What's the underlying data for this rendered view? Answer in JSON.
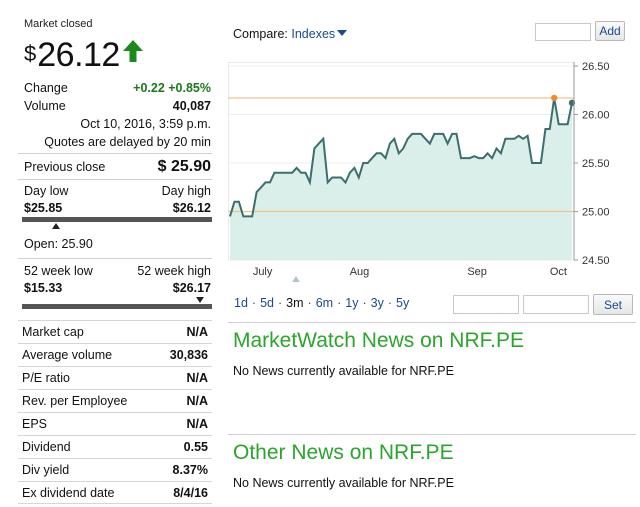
{
  "quote": {
    "market_status": "Market closed",
    "currency_symbol": "$",
    "price": "26.12",
    "change_label": "Change",
    "change_value": "+0.22 +0.85%",
    "volume_label": "Volume",
    "volume_value": "40,087",
    "timestamp": "Oct 10, 2016, 3:59 p.m.",
    "delay_note": "Quotes are delayed by 20 min",
    "prev_close_label": "Previous close",
    "prev_close_value": "$ 25.90",
    "day_low_label": "Day low",
    "day_high_label": "Day high",
    "day_low_value": "$25.85",
    "day_high_value": "$26.12",
    "open_text": "Open: 25.90",
    "wk52_low_label": "52 week low",
    "wk52_high_label": "52 week high",
    "wk52_low_value": "$15.33",
    "wk52_high_value": "$26.17"
  },
  "stats": [
    {
      "label": "Market cap",
      "value": "N/A"
    },
    {
      "label": "Average volume",
      "value": "30,836"
    },
    {
      "label": "P/E ratio",
      "value": "N/A"
    },
    {
      "label": "Rev. per Employee",
      "value": "N/A"
    },
    {
      "label": "EPS",
      "value": "N/A"
    },
    {
      "label": "Dividend",
      "value": "0.55"
    },
    {
      "label": "Div yield",
      "value": "8.37%"
    },
    {
      "label": "Ex dividend date",
      "value": "8/4/16"
    }
  ],
  "compare": {
    "label": "Compare:",
    "dropdown": "Indexes",
    "add_label": "Add"
  },
  "periods": [
    "1d",
    "5d",
    "3m",
    "6m",
    "1y",
    "3y",
    "5y"
  ],
  "active_period": "3m",
  "set_label": "Set",
  "news": {
    "marketwatch_title": "MarketWatch News on NRF.PE",
    "marketwatch_empty": "No News currently available for NRF.PE",
    "other_title": "Other News on NRF.PE",
    "other_empty": "No News currently available for NRF.PE"
  },
  "colors": {
    "up": "#1a7a1a",
    "news_title": "#2ba52b",
    "link": "#1a4a8a",
    "line": "#3d6e6e",
    "fill": "#daeeea",
    "ref_line": "#f2c48d",
    "high_dot": "#f08c2a"
  },
  "chart_data": {
    "type": "area",
    "x_labels": [
      "July",
      "Aug",
      "Sep",
      "Oct"
    ],
    "y_ticks": [
      24.5,
      25.0,
      25.5,
      26.0,
      26.5
    ],
    "ylim": [
      24.5,
      26.5
    ],
    "ref_lines": [
      25.0,
      26.17
    ],
    "series": [
      {
        "values": [
          24.95,
          25.1,
          25.1,
          24.95,
          24.95,
          24.95,
          25.2,
          25.25,
          25.3,
          25.3,
          25.4,
          25.4,
          25.4,
          25.4,
          25.4,
          25.45,
          25.4,
          25.4,
          25.3,
          25.65,
          25.7,
          25.75,
          25.3,
          25.35,
          25.35,
          25.35,
          25.3,
          25.4,
          25.45,
          25.35,
          25.5,
          25.5,
          25.55,
          25.6,
          25.6,
          25.55,
          25.7,
          25.75,
          25.6,
          25.65,
          25.75,
          25.8,
          25.8,
          25.8,
          25.75,
          25.7,
          25.8,
          25.8,
          25.8,
          25.7,
          25.8,
          25.8,
          25.55,
          25.55,
          25.55,
          25.57,
          25.55,
          25.55,
          25.6,
          25.55,
          25.65,
          25.6,
          25.75,
          25.75,
          25.75,
          25.78,
          25.75,
          25.78,
          25.5,
          25.5,
          25.5,
          25.85,
          25.85,
          26.17,
          25.9,
          25.9,
          25.9,
          26.12
        ]
      }
    ],
    "high_point": 26.17,
    "last_point": 26.12
  }
}
